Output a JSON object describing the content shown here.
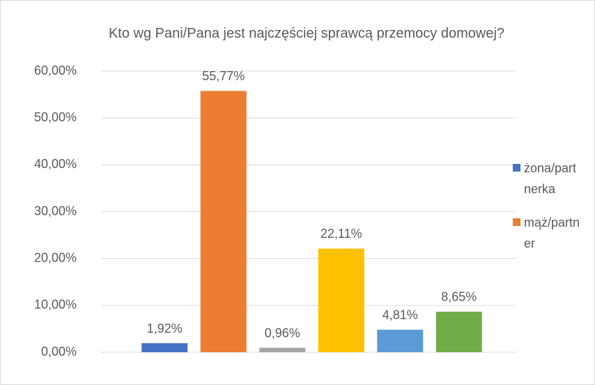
{
  "chart_data": {
    "type": "bar",
    "title": "Kto wg Pani/Pana jest najczęściej sprawcą przemocy domowej?",
    "series": [
      {
        "name": "żona/partnerka",
        "color": "#4472c4",
        "values": [
          1.92
        ],
        "value_labels": [
          "1,92%"
        ]
      },
      {
        "name": "mąż/partner",
        "color": "#ed7d31",
        "values": [
          55.77
        ],
        "value_labels": [
          "55,77%"
        ]
      },
      {
        "color": "#a5a5a5",
        "values": [
          0.96
        ],
        "value_labels": [
          "0,96%"
        ]
      },
      {
        "color": "#ffc000",
        "values": [
          22.11
        ],
        "value_labels": [
          "22,11%"
        ]
      },
      {
        "color": "#5b9bd5",
        "values": [
          4.81
        ],
        "value_labels": [
          "4,81%"
        ]
      },
      {
        "color": "#70ad47",
        "values": [
          8.65
        ],
        "value_labels": [
          "8,65%"
        ]
      }
    ],
    "ylim": [
      0,
      60
    ],
    "yticks": [
      {
        "value": 0,
        "label": "0,00%"
      },
      {
        "value": 10,
        "label": "10,00%"
      },
      {
        "value": 20,
        "label": "20,00%"
      },
      {
        "value": 30,
        "label": "30,00%"
      },
      {
        "value": 40,
        "label": "40,00%"
      },
      {
        "value": 50,
        "label": "50,00%"
      },
      {
        "value": 60,
        "label": "60,00%"
      }
    ],
    "grid": true,
    "legend": "right"
  }
}
